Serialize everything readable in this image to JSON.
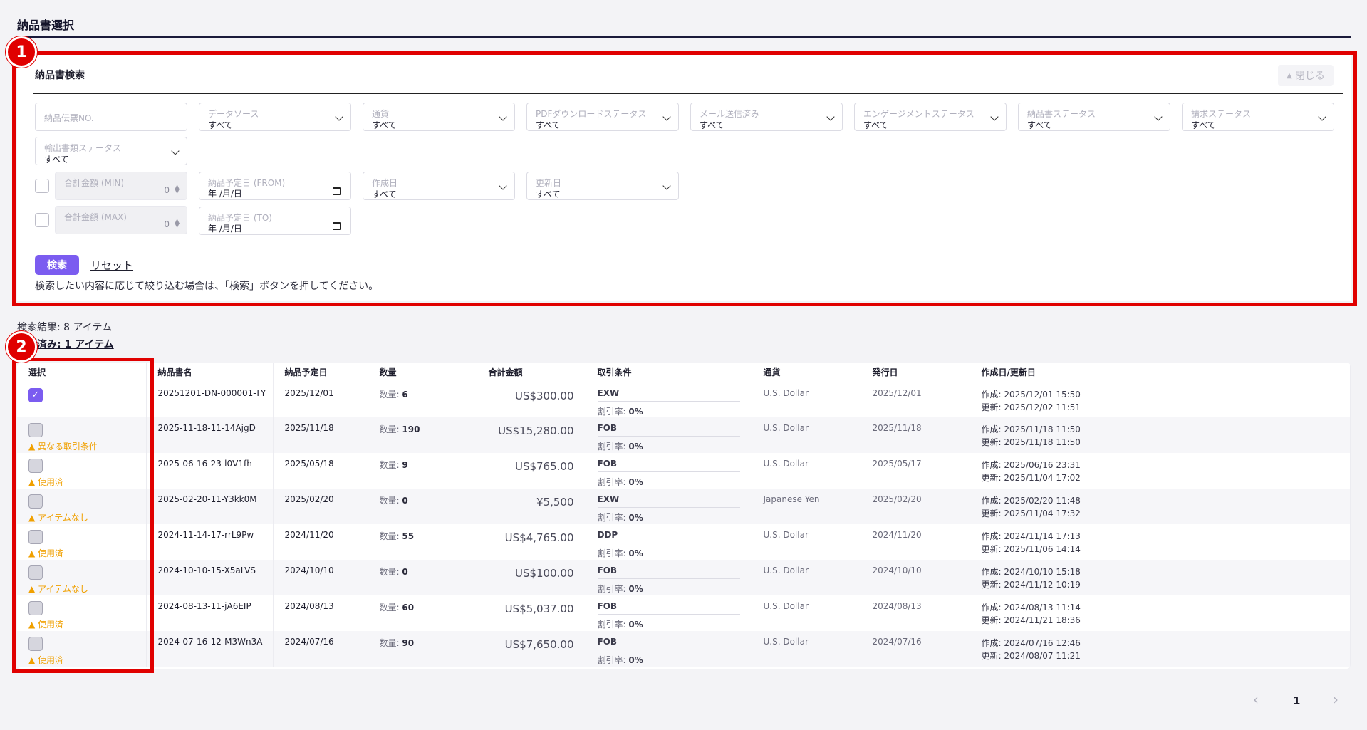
{
  "page": {
    "title": "納品書選択"
  },
  "search": {
    "title": "納品書検索",
    "close_label": "閉じる",
    "fields": {
      "slip_no": {
        "label": "納品伝票NO."
      },
      "data_source": {
        "label": "データソース",
        "value": "すべて"
      },
      "currency": {
        "label": "通貨",
        "value": "すべて"
      },
      "pdf_status": {
        "label": "PDFダウンロードステータス",
        "value": "すべて"
      },
      "mail_sent": {
        "label": "メール送信済み",
        "value": "すべて"
      },
      "engagement": {
        "label": "エンゲージメントステータス",
        "value": "すべて"
      },
      "invoice_status": {
        "label": "納品書ステータス",
        "value": "すべて"
      },
      "billing_status": {
        "label": "請求ステータス",
        "value": "すべて"
      },
      "export_status": {
        "label": "輸出書類ステータス",
        "value": "すべて"
      },
      "total_min": {
        "label": "合計金額 (MIN)",
        "value": "0"
      },
      "total_max": {
        "label": "合計金額 (MAX)",
        "value": "0"
      },
      "date_from": {
        "label": "納品予定日 (FROM)",
        "value": "年 /月/日"
      },
      "date_to": {
        "label": "納品予定日 (TO)",
        "value": "年 /月/日"
      },
      "created": {
        "label": "作成日",
        "value": "すべて"
      },
      "updated": {
        "label": "更新日",
        "value": "すべて"
      }
    },
    "search_button": "検索",
    "reset_link": "リセット",
    "hint": "検索したい内容に応じて絞り込む場合は、「検索」ボタンを押してください。"
  },
  "results": {
    "count_text": "検索結果: 8 アイテム",
    "selected_text": "選択済み: 1 アイテム"
  },
  "annotations": {
    "one": "1",
    "two": "2"
  },
  "table": {
    "headers": {
      "select": "選択",
      "name": "納品書名",
      "due": "納品予定日",
      "qty": "数量",
      "total": "合計金額",
      "terms": "取引条件",
      "currency": "通貨",
      "issued": "発行日",
      "dates": "作成日/更新日"
    },
    "rows": [
      {
        "checked": true,
        "warning": "",
        "name": "20251201-DN-000001-TY",
        "due": "2025/12/01",
        "qty_label": "数量:",
        "qty": "6",
        "total": "US$300.00",
        "term": "EXW",
        "disc_label": "割引率:",
        "disc": "0%",
        "currency": "U.S. Dollar",
        "issued": "2025/12/01",
        "created": "作成: 2025/12/01 15:50",
        "updated": "更新: 2025/12/02 11:51"
      },
      {
        "checked": false,
        "warning": "異なる取引条件",
        "name": "2025-11-18-11-14AjgD",
        "due": "2025/11/18",
        "qty_label": "数量:",
        "qty": "190",
        "total": "US$15,280.00",
        "term": "FOB",
        "disc_label": "割引率:",
        "disc": "0%",
        "currency": "U.S. Dollar",
        "issued": "2025/11/18",
        "created": "作成: 2025/11/18 11:50",
        "updated": "更新: 2025/11/18 11:50"
      },
      {
        "checked": false,
        "warning": "使用済",
        "name": "2025-06-16-23-l0V1fh",
        "due": "2025/05/18",
        "qty_label": "数量:",
        "qty": "9",
        "total": "US$765.00",
        "term": "FOB",
        "disc_label": "割引率:",
        "disc": "0%",
        "currency": "U.S. Dollar",
        "issued": "2025/05/17",
        "created": "作成: 2025/06/16 23:31",
        "updated": "更新: 2025/11/04 17:02"
      },
      {
        "checked": false,
        "warning": "アイテムなし",
        "name": "2025-02-20-11-Y3kk0M",
        "due": "2025/02/20",
        "qty_label": "数量:",
        "qty": "0",
        "total": "¥5,500",
        "term": "EXW",
        "disc_label": "割引率:",
        "disc": "0%",
        "currency": "Japanese Yen",
        "issued": "2025/02/20",
        "created": "作成: 2025/02/20 11:48",
        "updated": "更新: 2025/11/04 17:32"
      },
      {
        "checked": false,
        "warning": "使用済",
        "name": "2024-11-14-17-rrL9Pw",
        "due": "2024/11/20",
        "qty_label": "数量:",
        "qty": "55",
        "total": "US$4,765.00",
        "term": "DDP",
        "disc_label": "割引率:",
        "disc": "0%",
        "currency": "U.S. Dollar",
        "issued": "2024/11/20",
        "created": "作成: 2024/11/14 17:13",
        "updated": "更新: 2025/11/06 14:14"
      },
      {
        "checked": false,
        "warning": "アイテムなし",
        "name": "2024-10-10-15-X5aLVS",
        "due": "2024/10/10",
        "qty_label": "数量:",
        "qty": "0",
        "total": "US$100.00",
        "term": "FOB",
        "disc_label": "割引率:",
        "disc": "0%",
        "currency": "U.S. Dollar",
        "issued": "2024/10/10",
        "created": "作成: 2024/10/10 15:18",
        "updated": "更新: 2024/11/12 10:19"
      },
      {
        "checked": false,
        "warning": "使用済",
        "name": "2024-08-13-11-jA6EIP",
        "due": "2024/08/13",
        "qty_label": "数量:",
        "qty": "60",
        "total": "US$5,037.00",
        "term": "FOB",
        "disc_label": "割引率:",
        "disc": "0%",
        "currency": "U.S. Dollar",
        "issued": "2024/08/13",
        "created": "作成: 2024/08/13 11:14",
        "updated": "更新: 2024/11/21 18:36"
      },
      {
        "checked": false,
        "warning": "使用済",
        "name": "2024-07-16-12-M3Wn3A",
        "due": "2024/07/16",
        "qty_label": "数量:",
        "qty": "90",
        "total": "US$7,650.00",
        "term": "FOB",
        "disc_label": "割引率:",
        "disc": "0%",
        "currency": "U.S. Dollar",
        "issued": "2024/07/16",
        "created": "作成: 2024/07/16 12:46",
        "updated": "更新: 2024/08/07 11:21"
      }
    ]
  },
  "pagination": {
    "current": "1",
    "prev_icon": "‹",
    "next_icon": "›"
  },
  "colors": {
    "accent": "#7b5cf0",
    "annotation": "#e00000",
    "warning": "#f0a000"
  }
}
